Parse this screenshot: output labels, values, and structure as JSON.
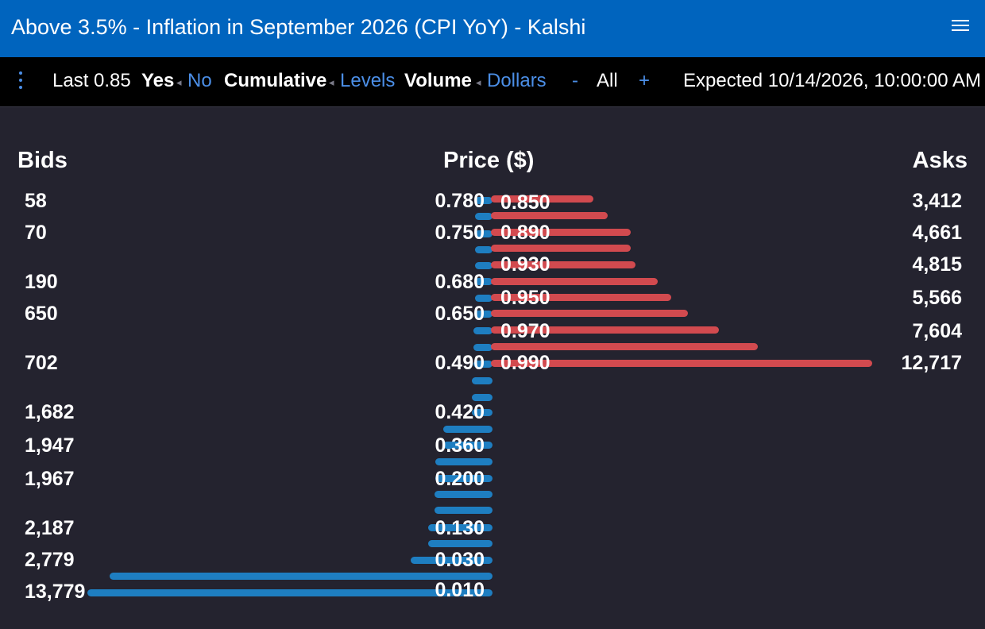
{
  "window": {
    "title": "Above 3.5% - Inflation in September 2026 (CPI YoY) - Kalshi",
    "menu_icon": "hamburger-menu-icon"
  },
  "toolbar": {
    "more_icon": "kebab-menu-icon",
    "last": "Last 0.85",
    "side_selected": "Yes",
    "side_other": "No",
    "mode_selected": "Cumulative",
    "mode_other": "Levels",
    "unit_selected": "Volume",
    "unit_other": "Dollars",
    "zoom_out": "-",
    "zoom_level": "All",
    "zoom_in": "+",
    "expected": "Expected 10/14/2026, 10:00:00 AM",
    "caret": "◂"
  },
  "orderbook": {
    "bids_header": "Bids",
    "price_header": "Price ($)",
    "asks_header": "Asks",
    "bids": [
      {
        "price": "0.780",
        "size": "58"
      },
      {
        "price": "0.750",
        "size": "70"
      },
      {
        "price": "0.680",
        "size": "190"
      },
      {
        "price": "0.650",
        "size": "650"
      },
      {
        "price": "0.490",
        "size": "702"
      },
      {
        "price": "0.420",
        "size": "1,682"
      },
      {
        "price": "0.360",
        "size": "1,947"
      },
      {
        "price": "0.200",
        "size": "1,967"
      },
      {
        "price": "0.130",
        "size": "2,187"
      },
      {
        "price": "0.030",
        "size": "2,779"
      },
      {
        "price": "0.010",
        "size": "13,779"
      }
    ],
    "asks": [
      {
        "price": "0.850",
        "size": "3,412"
      },
      {
        "price": "0.890",
        "size": "4,661"
      },
      {
        "price": "0.930",
        "size": "4,815"
      },
      {
        "price": "0.950",
        "size": "5,566"
      },
      {
        "price": "0.970",
        "size": "7,604"
      },
      {
        "price": "0.990",
        "size": "12,717"
      }
    ],
    "depth_max": 13779,
    "bid_depth_bars": [
      58,
      58,
      58,
      70,
      70,
      70,
      190,
      190,
      650,
      650,
      650,
      702,
      702,
      702,
      1682,
      1682,
      1947,
      1947,
      1967,
      1967,
      2187,
      2187,
      2779,
      13015,
      13779
    ],
    "ask_depth_bars": [
      3412,
      3900,
      4661,
      4661,
      4815,
      5566,
      6010,
      6560,
      7604,
      8900,
      12717
    ]
  },
  "colors": {
    "titlebar": "#0064be",
    "background": "#24232f",
    "bid": "#1e7ec1",
    "ask": "#d24a4f",
    "link": "#4b8ee6"
  }
}
